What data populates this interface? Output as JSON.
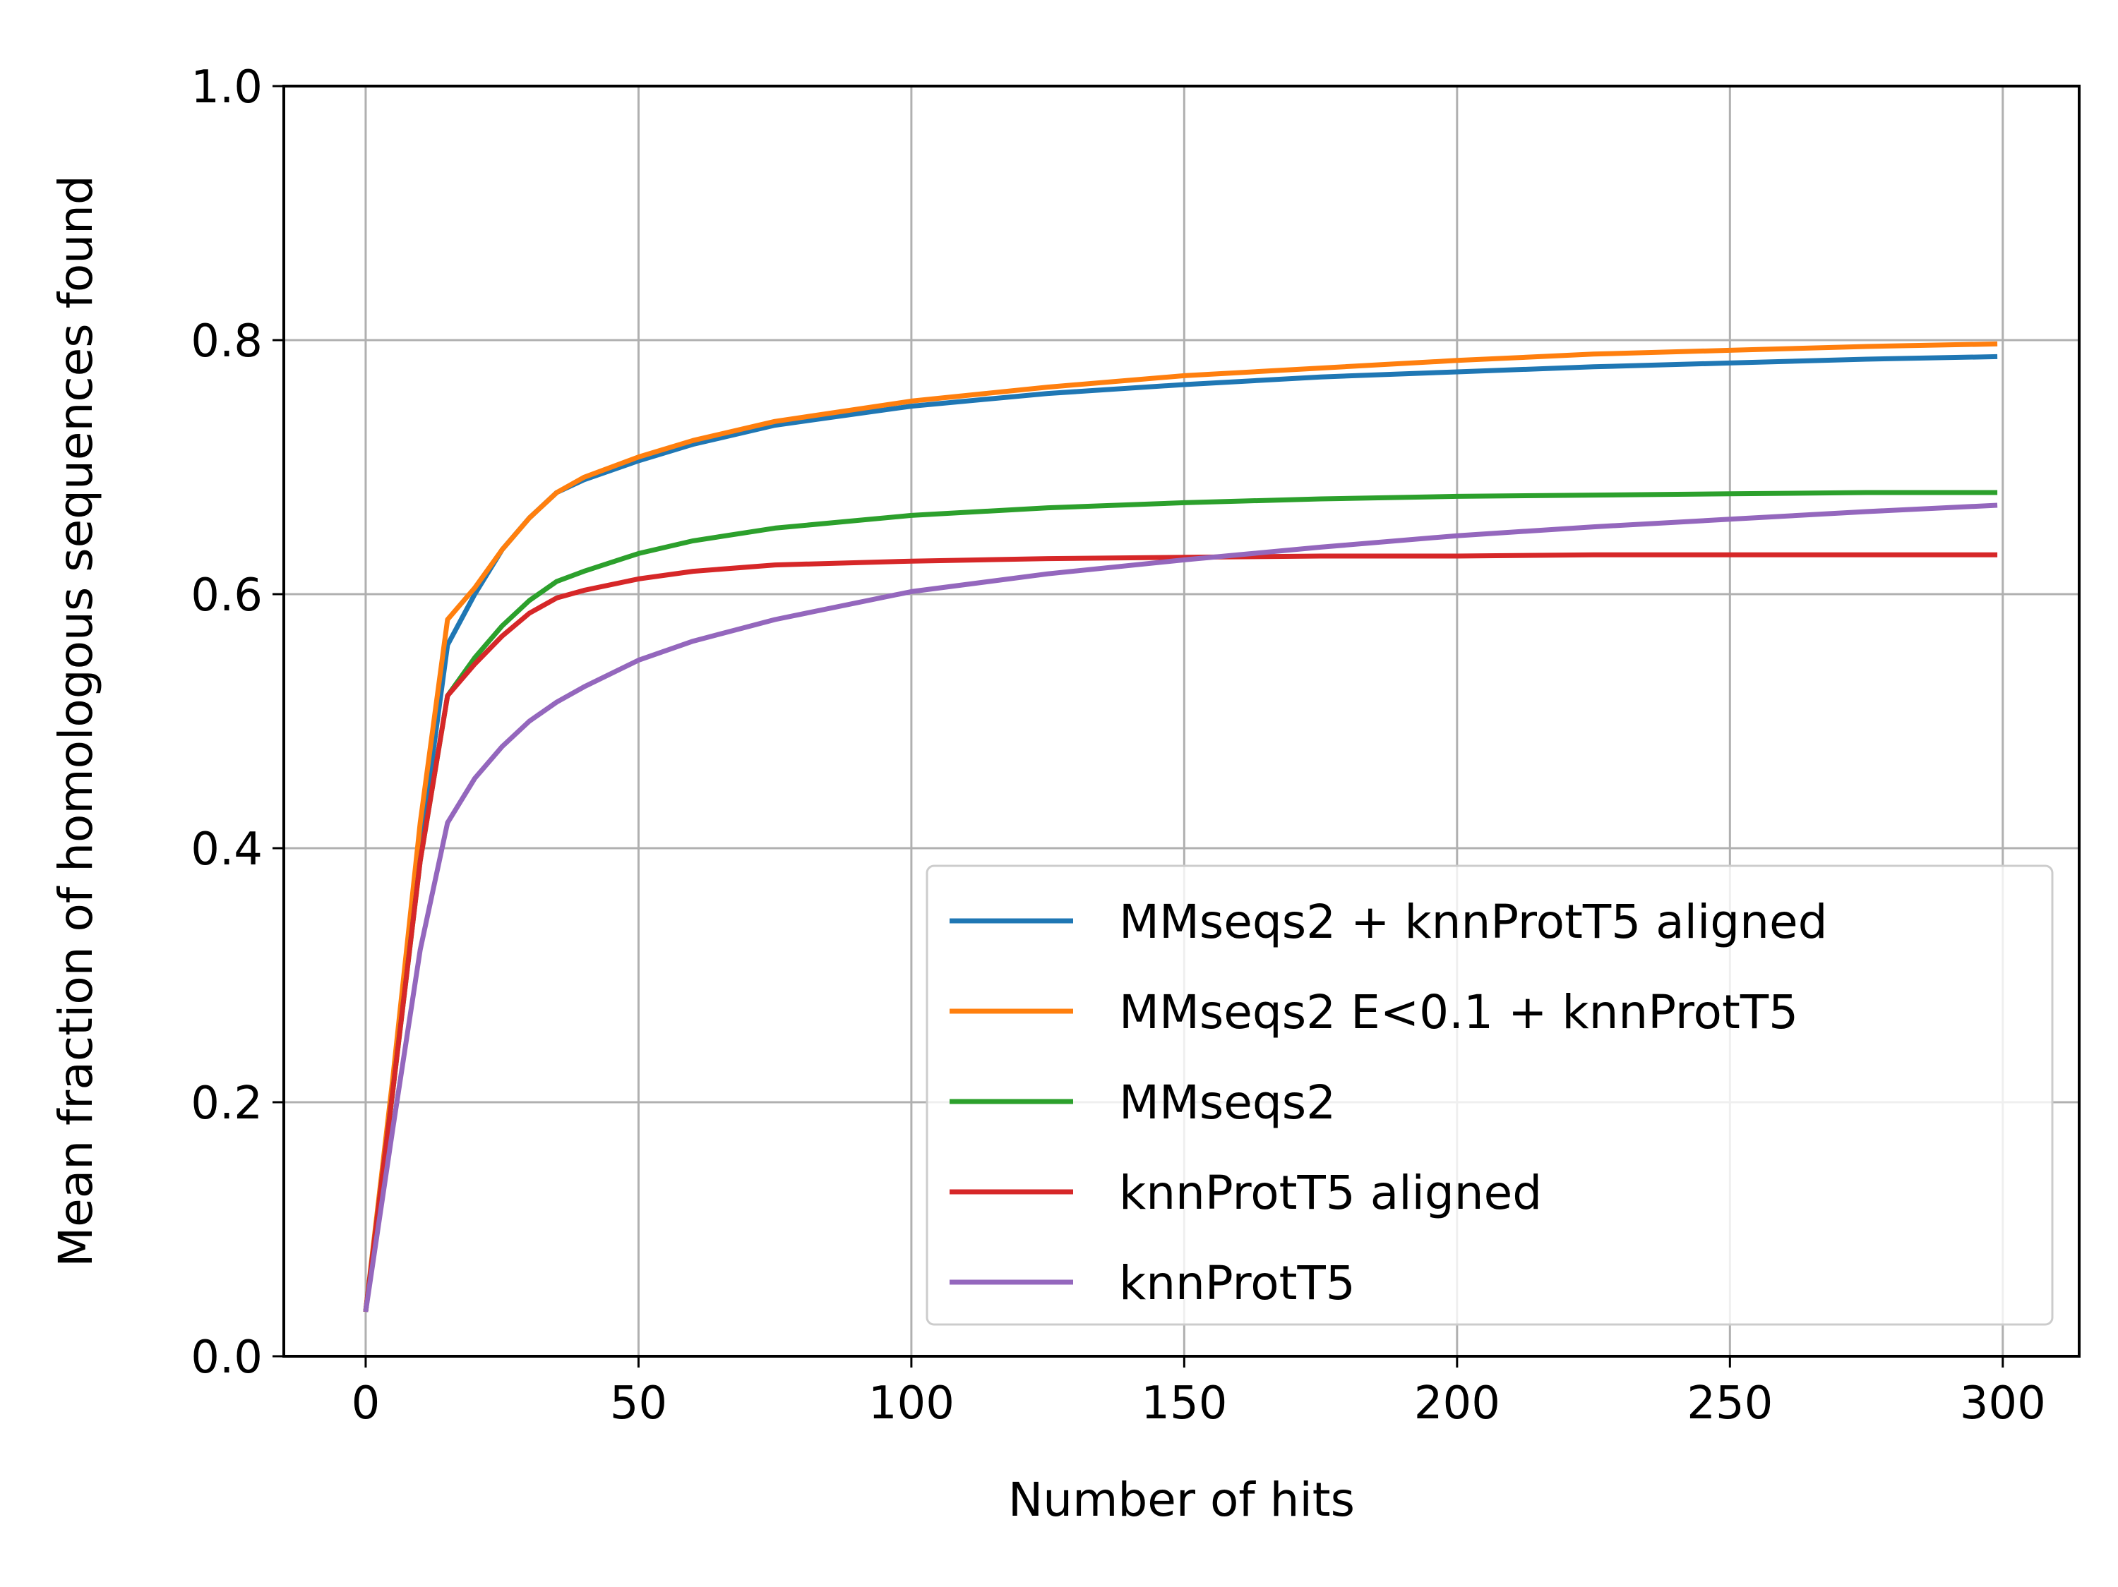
{
  "chart_data": {
    "type": "line",
    "title": "",
    "xlabel": "Number of hits",
    "ylabel": "Mean fraction of homologous sequences found",
    "xlim": [
      -15,
      314
    ],
    "ylim": [
      0,
      1
    ],
    "xticks": [
      0,
      50,
      100,
      150,
      200,
      250,
      300
    ],
    "yticks": [
      0,
      0.2,
      0.4,
      0.6,
      0.8,
      1.0
    ],
    "xtick_labels": [
      "0",
      "50",
      "100",
      "150",
      "200",
      "250",
      "300"
    ],
    "ytick_labels": [
      "0.0",
      "0.2",
      "0.4",
      "0.6",
      "0.8",
      "1.0"
    ],
    "grid": true,
    "legend_position": "lower-right",
    "x": [
      0,
      5,
      10,
      15,
      20,
      25,
      30,
      35,
      40,
      50,
      60,
      75,
      100,
      125,
      150,
      175,
      200,
      225,
      250,
      275,
      299
    ],
    "series": [
      {
        "name": "MMseqs2 + knnProtT5 aligned",
        "color": "#1f77b4",
        "values": [
          0.035,
          0.21,
          0.4,
          0.56,
          0.6,
          0.635,
          0.66,
          0.68,
          0.69,
          0.705,
          0.718,
          0.733,
          0.748,
          0.758,
          0.765,
          0.771,
          0.775,
          0.779,
          0.782,
          0.785,
          0.787
        ]
      },
      {
        "name": "MMseqs2 E<0.1 + knnProtT5",
        "color": "#ff7f0e",
        "values": [
          0.035,
          0.22,
          0.42,
          0.58,
          0.605,
          0.635,
          0.66,
          0.68,
          0.692,
          0.708,
          0.721,
          0.736,
          0.752,
          0.763,
          0.772,
          0.778,
          0.784,
          0.789,
          0.792,
          0.795,
          0.797
        ]
      },
      {
        "name": "MMseqs2",
        "color": "#2ca02c",
        "values": [
          0.035,
          0.21,
          0.39,
          0.52,
          0.55,
          0.575,
          0.595,
          0.61,
          0.618,
          0.632,
          0.642,
          0.652,
          0.662,
          0.668,
          0.672,
          0.675,
          0.677,
          0.678,
          0.679,
          0.68,
          0.68
        ]
      },
      {
        "name": "knnProtT5 aligned",
        "color": "#d62728",
        "values": [
          0.035,
          0.21,
          0.39,
          0.52,
          0.545,
          0.567,
          0.585,
          0.597,
          0.603,
          0.612,
          0.618,
          0.623,
          0.626,
          0.628,
          0.629,
          0.63,
          0.63,
          0.631,
          0.631,
          0.631,
          0.631
        ]
      },
      {
        "name": "knnProtT5",
        "color": "#9467bd",
        "values": [
          0.035,
          0.18,
          0.32,
          0.42,
          0.455,
          0.48,
          0.5,
          0.515,
          0.527,
          0.548,
          0.563,
          0.58,
          0.602,
          0.616,
          0.627,
          0.637,
          0.646,
          0.653,
          0.659,
          0.665,
          0.67
        ]
      }
    ]
  }
}
